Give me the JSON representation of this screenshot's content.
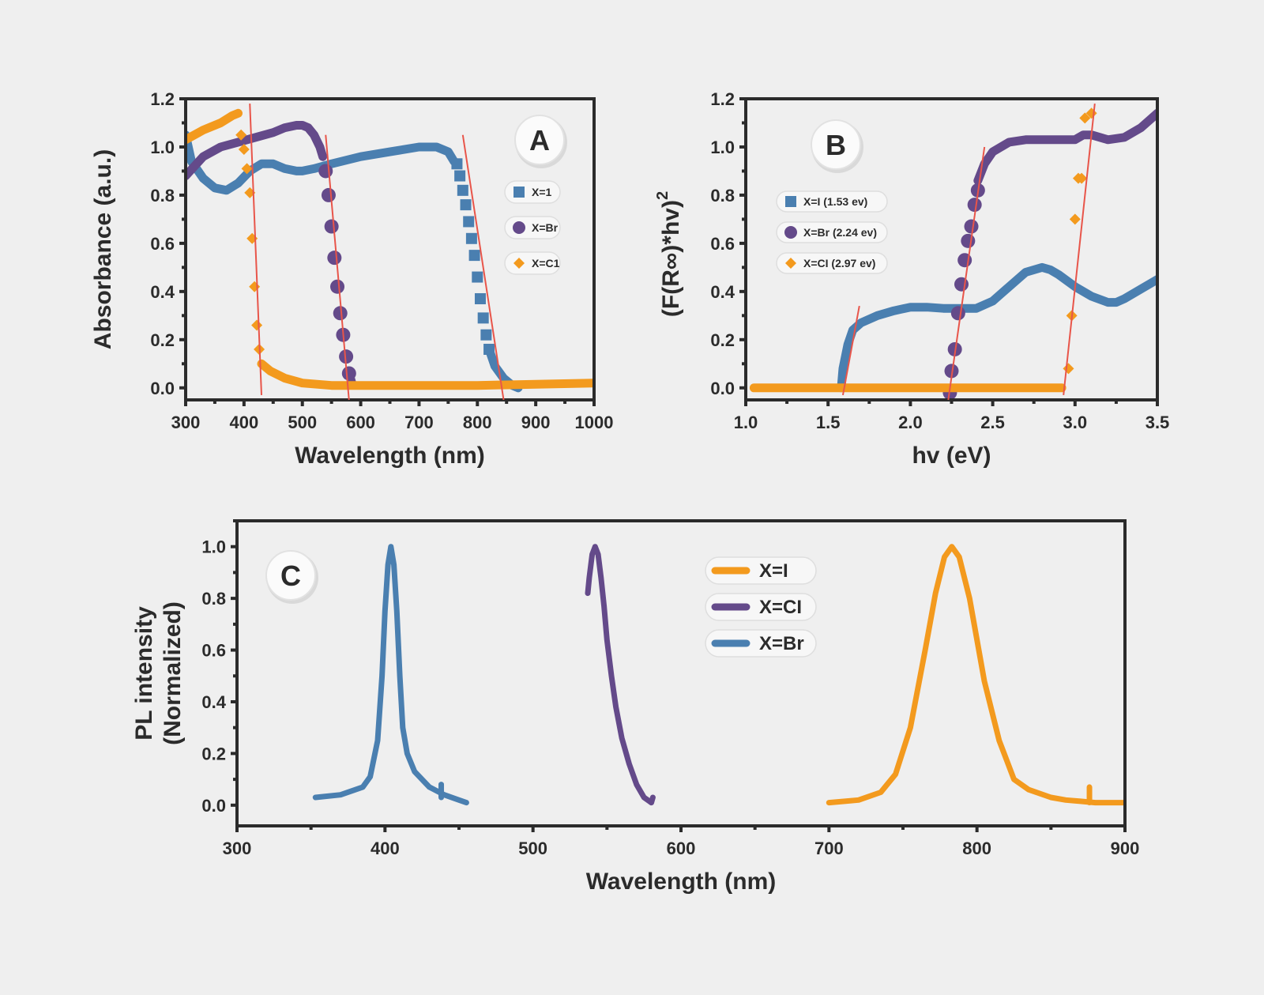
{
  "colors": {
    "iodide": "#4a7fb0",
    "bromide": "#644a8a",
    "chloride": "#f39a1e",
    "fit": "#e8554a",
    "axis": "#2b2b2b",
    "background": "#efefef"
  },
  "chart_data": [
    {
      "id": "A",
      "type": "line",
      "badge": "A",
      "xlabel": "Wavelength (nm)",
      "ylabel": "Absorbance (a.u.)",
      "xlim": [
        300,
        1000
      ],
      "ylim": [
        -0.05,
        1.2
      ],
      "xticks": [
        "300",
        "400",
        "500",
        "600",
        "700",
        "800",
        "900",
        "1000"
      ],
      "yticks": [
        "0.0",
        "0.2",
        "0.4",
        "0.6",
        "0.8",
        "1.0",
        "1.2"
      ],
      "legend_position": "top-right",
      "legend": [
        {
          "label": "X=1",
          "marker": "square"
        },
        {
          "label": "X=Br",
          "marker": "circle"
        },
        {
          "label": "X=C1",
          "marker": "diamond"
        }
      ],
      "series": [
        {
          "key": "iodide",
          "line": {
            "x": [
              300,
              310,
              330,
              350,
              370,
              390,
              410,
              430,
              450,
              470,
              490,
              500,
              520,
              550,
              600,
              650,
              700,
              730,
              750,
              760
            ],
            "y": [
              1.05,
              0.94,
              0.87,
              0.83,
              0.82,
              0.85,
              0.9,
              0.93,
              0.93,
              0.91,
              0.9,
              0.9,
              0.91,
              0.93,
              0.96,
              0.98,
              1.0,
              1.0,
              0.98,
              0.94
            ]
          },
          "markers": {
            "x": [
              765,
              770,
              775,
              780,
              785,
              790,
              795,
              800,
              805,
              810,
              815,
              820
            ],
            "y": [
              0.93,
              0.88,
              0.82,
              0.76,
              0.69,
              0.62,
              0.55,
              0.46,
              0.37,
              0.29,
              0.22,
              0.16
            ]
          },
          "tail": {
            "x": [
              820,
              830,
              845,
              860,
              870
            ],
            "y": [
              0.16,
              0.09,
              0.04,
              0.01,
              0.0
            ]
          }
        },
        {
          "key": "bromide",
          "line": {
            "x": [
              300,
              330,
              360,
              390,
              420,
              450,
              470,
              490,
              500,
              510,
              520,
              530,
              535
            ],
            "y": [
              0.88,
              0.96,
              1.0,
              1.02,
              1.04,
              1.06,
              1.08,
              1.09,
              1.09,
              1.08,
              1.05,
              1.0,
              0.96
            ]
          },
          "markers": {
            "x": [
              540,
              545,
              550,
              555,
              560,
              565,
              570,
              575,
              580
            ],
            "y": [
              0.9,
              0.8,
              0.67,
              0.54,
              0.42,
              0.31,
              0.22,
              0.13,
              0.06
            ]
          },
          "tail": {
            "x": [
              580,
              585
            ],
            "y": [
              0.06,
              0.02
            ]
          }
        },
        {
          "key": "chloride",
          "line": {
            "x": [
              300,
              330,
              360,
              380,
              390
            ],
            "y": [
              1.03,
              1.07,
              1.1,
              1.13,
              1.14
            ]
          },
          "markers": {
            "x": [
              395,
              400,
              405,
              410,
              414,
              418,
              422,
              426
            ],
            "y": [
              1.05,
              0.99,
              0.91,
              0.81,
              0.62,
              0.42,
              0.26,
              0.16
            ]
          },
          "tail": {
            "x": [
              430,
              445,
              470,
              500,
              550,
              600,
              700,
              800,
              900,
              1000
            ],
            "y": [
              0.1,
              0.07,
              0.04,
              0.02,
              0.01,
              0.01,
              0.01,
              0.01,
              0.015,
              0.02
            ]
          }
        }
      ],
      "fit_lines": [
        {
          "x": [
            410,
            430
          ],
          "y": [
            1.18,
            -0.03
          ]
        },
        {
          "x": [
            540,
            580
          ],
          "y": [
            1.05,
            -0.05
          ]
        },
        {
          "x": [
            775,
            845
          ],
          "y": [
            1.05,
            -0.05
          ]
        }
      ]
    },
    {
      "id": "B",
      "type": "line",
      "badge": "B",
      "xlabel": "hv (eV)",
      "ylabel_main": "(F(R∞)*hv)",
      "ylabel_sup": "2",
      "xlim": [
        1.0,
        3.5
      ],
      "ylim": [
        -0.05,
        1.2
      ],
      "xticks": [
        "1.0",
        "1.5",
        "2.0",
        "2.5",
        "3.0",
        "3.5"
      ],
      "yticks": [
        "0.0",
        "0.2",
        "0.4",
        "0.6",
        "0.8",
        "1.0",
        "1.2"
      ],
      "legend_position": "top-left",
      "legend": [
        {
          "label": "X=I (1.53 ev)",
          "marker": "square"
        },
        {
          "label": "X=Br (2.24 ev)",
          "marker": "circle"
        },
        {
          "label": "X=CI (2.97 ev)",
          "marker": "diamond"
        }
      ],
      "series": [
        {
          "key": "iodide",
          "line": {
            "x": [
              1.58,
              1.59,
              1.62,
              1.65,
              1.7,
              1.8,
              1.9,
              2.0,
              2.1,
              2.2,
              2.3,
              2.4,
              2.5,
              2.6,
              2.7,
              2.8,
              2.85,
              2.9,
              3.0,
              3.1,
              3.2,
              3.25,
              3.3,
              3.4,
              3.5
            ],
            "y": [
              0.0,
              0.08,
              0.18,
              0.24,
              0.27,
              0.3,
              0.32,
              0.335,
              0.335,
              0.33,
              0.33,
              0.33,
              0.36,
              0.42,
              0.48,
              0.5,
              0.49,
              0.47,
              0.42,
              0.38,
              0.355,
              0.355,
              0.37,
              0.41,
              0.45
            ]
          }
        },
        {
          "key": "bromide",
          "markers": {
            "x": [
              2.24,
              2.25,
              2.27,
              2.29,
              2.31,
              2.33,
              2.35,
              2.37,
              2.39,
              2.41
            ],
            "y": [
              -0.02,
              0.07,
              0.16,
              0.31,
              0.43,
              0.53,
              0.61,
              0.67,
              0.76,
              0.82
            ]
          },
          "line": {
            "x": [
              2.41,
              2.45,
              2.5,
              2.6,
              2.7,
              2.8,
              2.9,
              3.0,
              3.05,
              3.1,
              3.2,
              3.3,
              3.4,
              3.5
            ],
            "y": [
              0.86,
              0.93,
              0.98,
              1.02,
              1.03,
              1.03,
              1.03,
              1.03,
              1.05,
              1.05,
              1.03,
              1.04,
              1.08,
              1.14
            ]
          }
        },
        {
          "key": "chloride",
          "line": {
            "x": [
              1.05,
              2.5,
              2.92
            ],
            "y": [
              0.0,
              0.0,
              0.0
            ]
          },
          "markers": {
            "x": [
              2.96,
              2.98,
              3.0,
              3.02,
              3.04,
              3.06,
              3.1
            ],
            "y": [
              0.08,
              0.3,
              0.7,
              0.87,
              0.87,
              1.12,
              1.14
            ]
          }
        }
      ],
      "fit_lines": [
        {
          "x": [
            1.59,
            1.69
          ],
          "y": [
            -0.03,
            0.34
          ]
        },
        {
          "x": [
            2.23,
            2.45
          ],
          "y": [
            -0.05,
            1.0
          ]
        },
        {
          "x": [
            2.93,
            3.12
          ],
          "y": [
            -0.03,
            1.18
          ]
        }
      ]
    },
    {
      "id": "C",
      "type": "line",
      "badge": "C",
      "xlabel": "Wavelength (nm)",
      "ylabel_lines": [
        "PL intensity",
        "(Normalized)"
      ],
      "xlim": [
        300,
        900
      ],
      "ylim": [
        -0.08,
        1.1
      ],
      "xticks": [
        "300",
        "400",
        "500",
        "600",
        "700",
        "800",
        "900"
      ],
      "yticks": [
        "0.0",
        "0.2",
        "0.4",
        "0.6",
        "0.8",
        "1.0"
      ],
      "legend_position": "top-center",
      "legend": [
        {
          "label": "X=I",
          "key": "chloride"
        },
        {
          "label": "X=CI",
          "key": "bromide"
        },
        {
          "label": "X=Br",
          "key": "iodide"
        }
      ],
      "series": [
        {
          "key": "iodide",
          "line": {
            "x": [
              353,
              370,
              385,
              390,
              395,
              398,
              400,
              402,
              404,
              406,
              408,
              410,
              412,
              415,
              420,
              430,
              440,
              450,
              455
            ],
            "y": [
              0.03,
              0.04,
              0.07,
              0.11,
              0.25,
              0.5,
              0.75,
              0.93,
              1.0,
              0.93,
              0.75,
              0.5,
              0.3,
              0.2,
              0.13,
              0.07,
              0.04,
              0.02,
              0.01
            ]
          },
          "spike": {
            "x": 438,
            "y0": 0.03,
            "y1": 0.08
          }
        },
        {
          "key": "bromide",
          "line": {
            "x": [
              537,
              538,
              540,
              542,
              544,
              546,
              548,
              550,
              553,
              556,
              560,
              565,
              570,
              575,
              580,
              581
            ],
            "y": [
              0.82,
              0.88,
              0.97,
              1.0,
              0.97,
              0.88,
              0.77,
              0.64,
              0.5,
              0.38,
              0.26,
              0.16,
              0.08,
              0.03,
              0.01,
              0.03
            ]
          }
        },
        {
          "key": "chloride",
          "line": {
            "x": [
              700,
              720,
              735,
              745,
              755,
              765,
              772,
              778,
              783,
              788,
              795,
              805,
              815,
              825,
              835,
              850,
              860,
              870,
              880,
              900
            ],
            "y": [
              0.01,
              0.02,
              0.05,
              0.12,
              0.3,
              0.6,
              0.82,
              0.96,
              1.0,
              0.96,
              0.8,
              0.48,
              0.25,
              0.1,
              0.06,
              0.03,
              0.02,
              0.015,
              0.01,
              0.01
            ]
          },
          "spike": {
            "x": 876,
            "y0": 0.01,
            "y1": 0.07
          }
        }
      ]
    }
  ]
}
